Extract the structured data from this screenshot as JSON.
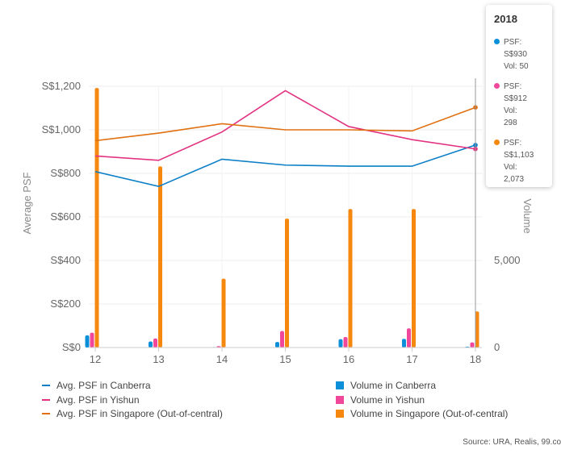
{
  "chart_data": {
    "type": "bar+line",
    "x": [
      12,
      13,
      14,
      15,
      16,
      17,
      18
    ],
    "tick_labels": [
      "12",
      "13",
      "14",
      "15",
      "16",
      "17",
      "18"
    ],
    "y_left": {
      "label": "Average PSF",
      "ticks": [
        "S$0",
        "S$200",
        "S$400",
        "S$600",
        "S$800",
        "S$1,000",
        "S$1,200"
      ],
      "tick_values": [
        0,
        200,
        400,
        600,
        800,
        1000,
        1200
      ],
      "range": [
        0,
        1200
      ]
    },
    "y_right": {
      "label": "Volume",
      "ticks": [
        "0",
        "5,000"
      ],
      "tick_values": [
        0,
        5000
      ],
      "range": [
        0,
        15000
      ]
    },
    "grid": true,
    "line_series": [
      {
        "name": "Avg. PSF in Canberra",
        "color": "#0a7fc8",
        "values": [
          808,
          740,
          865,
          838,
          833,
          833,
          930
        ]
      },
      {
        "name": "Avg. PSF in Yishun",
        "color": "#e23281",
        "values": [
          880,
          860,
          990,
          1180,
          1015,
          955,
          912
        ]
      },
      {
        "name": "Avg. PSF in Singapore (Out-of-central)",
        "color": "#e07010",
        "values": [
          950,
          985,
          1028,
          1000,
          1000,
          995,
          1103
        ]
      }
    ],
    "bar_series": [
      {
        "name": "Volume in Canberra",
        "color": "#0a8fd8",
        "values": [
          700,
          350,
          30,
          320,
          480,
          500,
          50
        ]
      },
      {
        "name": "Volume in Yishun",
        "color": "#f0479b",
        "values": [
          850,
          520,
          80,
          950,
          600,
          1100,
          298
        ]
      },
      {
        "name": "Volume in Singapore (Out-of-central)",
        "color": "#f7880f",
        "values": [
          14900,
          10400,
          3950,
          7400,
          7950,
          7950,
          2073
        ]
      }
    ],
    "legend_position": "bottom"
  },
  "tooltip": {
    "title": "2018",
    "items": [
      {
        "color": "#0a8fd8",
        "lines": [
          "PSF:",
          "S$930",
          "Vol: 50"
        ]
      },
      {
        "color": "#f0479b",
        "lines": [
          "PSF:",
          "S$912",
          "Vol:",
          "298"
        ]
      },
      {
        "color": "#f7880f",
        "lines": [
          "PSF:",
          "S$1,103",
          "Vol:",
          "2,073"
        ]
      }
    ]
  },
  "legend": {
    "line_items": [
      "Avg. PSF in Canberra",
      "Avg. PSF in Yishun",
      "Avg. PSF in Singapore (Out-of-central)"
    ],
    "bar_items": [
      "Volume in Canberra",
      "Volume in Yishun",
      "Volume in Singapore (Out-of-central)"
    ]
  },
  "source": "Source: URA, Realis, 99.co"
}
